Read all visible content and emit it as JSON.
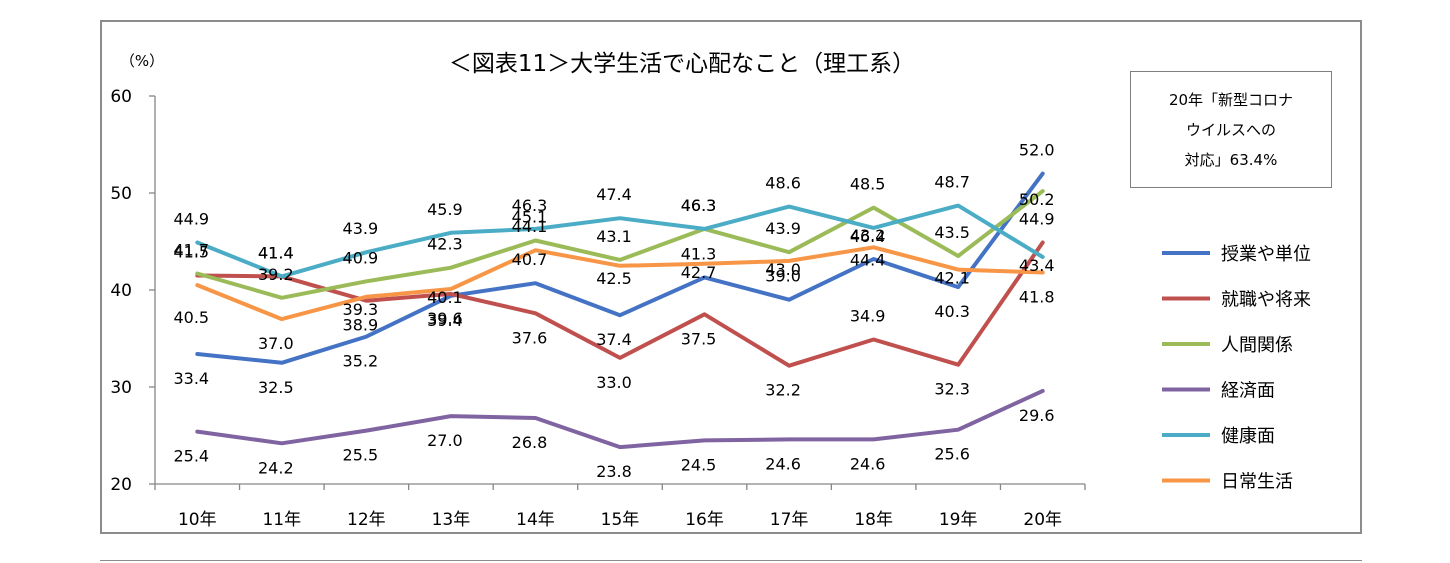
{
  "chart_data": {
    "type": "line",
    "title": "＜図表11＞大学生活で心配なこと（理工系）",
    "ylabel": "（%）",
    "ylim": [
      20,
      60
    ],
    "yticks": [
      20,
      30,
      40,
      50,
      60
    ],
    "grid": false,
    "legend_position": "right",
    "categories": [
      "10年",
      "11年",
      "12年",
      "13年",
      "14年",
      "15年",
      "16年",
      "17年",
      "18年",
      "19年",
      "20年"
    ],
    "series": [
      {
        "name": "授業や単位",
        "color": "#4472C4",
        "values": [
          33.4,
          32.5,
          35.2,
          39.4,
          40.7,
          37.4,
          41.3,
          39.0,
          43.2,
          40.3,
          52.0
        ]
      },
      {
        "name": "就職や将来",
        "color": "#C0504D",
        "values": [
          41.5,
          41.4,
          38.9,
          39.6,
          37.6,
          33.0,
          37.5,
          32.2,
          34.9,
          32.3,
          44.9
        ]
      },
      {
        "name": "人間関係",
        "color": "#9BBB59",
        "values": [
          41.7,
          39.2,
          40.9,
          42.3,
          45.1,
          43.1,
          46.3,
          43.9,
          48.5,
          43.5,
          50.2
        ]
      },
      {
        "name": "経済面",
        "color": "#8064A2",
        "values": [
          25.4,
          24.2,
          25.5,
          27.0,
          26.8,
          23.8,
          24.5,
          24.6,
          24.6,
          25.6,
          29.6
        ]
      },
      {
        "name": "健康面",
        "color": "#4BACC6",
        "values": [
          44.9,
          41.4,
          43.9,
          45.9,
          46.3,
          47.4,
          46.3,
          48.6,
          46.4,
          48.7,
          43.4
        ]
      },
      {
        "name": "日常生活",
        "color": "#F79646",
        "values": [
          40.5,
          37.0,
          39.3,
          40.1,
          44.1,
          42.5,
          42.7,
          43.0,
          44.4,
          42.1,
          41.8
        ]
      }
    ],
    "annotation": "20年「新型コロナ\nウイルスへの\n対応」63.4%"
  }
}
